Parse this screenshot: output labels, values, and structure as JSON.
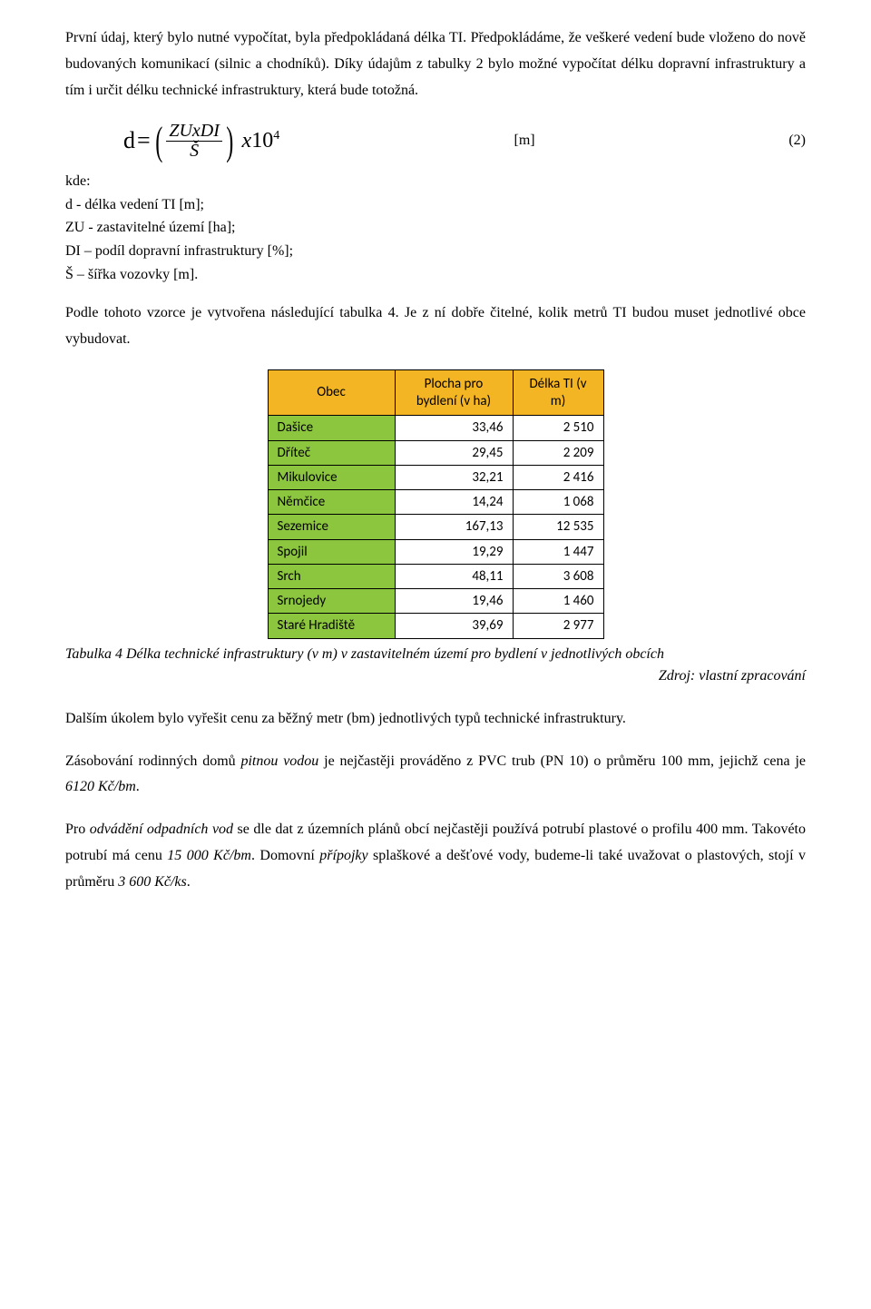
{
  "paragraphs": {
    "p1": "První údaj, který bylo nutné vypočítat, byla předpokládaná délka TI. Předpokládáme, že veškeré vedení bude vloženo do nově budovaných komunikací (silnic a chodníků). Díky údajům z tabulky 2 bylo možné vypočítat délku dopravní infrastruktury a tím i určit délku technické infrastruktury, která bude totožná.",
    "p2": "Podle tohoto vzorce je vytvořena následující tabulka 4. Je z ní dobře čitelné, kolik metrů TI budou muset jednotlivé obce vybudovat.",
    "p3_pre": "Dalším úkolem bylo vyřešit cenu za běžný metr (bm) jednotlivých typů technické infrastruktury.",
    "p4_a": "Zásobování rodinných domů ",
    "p4_i1": "pitnou vodou",
    "p4_b": " je nejčastěji prováděno z PVC trub (PN 10) o průměru 100 mm, jejichž cena je ",
    "p4_i2": "6120 Kč/bm",
    "p4_c": ".",
    "p5_a": "Pro ",
    "p5_i1": "odvádění odpadních vod",
    "p5_b": " se dle dat z územních plánů obcí nejčastěji používá potrubí plastové o profilu 400 mm. Takovéto potrubí má cenu ",
    "p5_i2": "15 000 Kč/bm",
    "p5_c": ". Domovní ",
    "p5_i3": "přípojky",
    "p5_d": " splaškové a dešťové vody, budeme-li také uvažovat o plastových, stojí v průměru ",
    "p5_i4": "3 600 Kč/ks",
    "p5_e": "."
  },
  "formula": {
    "lhs": "d",
    "eq": "=",
    "num": "ZUxDI",
    "den": "Š",
    "mul_x": "x",
    "base": "10",
    "exp": "4",
    "unit": "[m]",
    "eqnum": "(2)"
  },
  "defs": {
    "kde": "kde:",
    "l1": "d - délka vedení TI  [m];",
    "l2": "ZU - zastavitelné území  [ha];",
    "l3": "DI – podíl dopravní infrastruktury  [%];",
    "l4": "Š – šířka vozovky [m]."
  },
  "table": {
    "headers": {
      "obec": "Obec",
      "plocha": "Plocha pro bydlení (v ha)",
      "delka": "Délka TI (v m)"
    },
    "rows": [
      {
        "name": "Dašice",
        "area": "33,46",
        "length": "2 510"
      },
      {
        "name": "Dříteč",
        "area": "29,45",
        "length": "2 209"
      },
      {
        "name": "Mikulovice",
        "area": "32,21",
        "length": "2 416"
      },
      {
        "name": "Němčice",
        "area": "14,24",
        "length": "1 068"
      },
      {
        "name": "Sezemice",
        "area": "167,13",
        "length": "12 535"
      },
      {
        "name": "Spojil",
        "area": "19,29",
        "length": "1 447"
      },
      {
        "name": "Srch",
        "area": "48,11",
        "length": "3 608"
      },
      {
        "name": "Srnojedy",
        "area": "19,46",
        "length": "1 460"
      },
      {
        "name": "Staré Hradiště",
        "area": "39,69",
        "length": "2 977"
      }
    ],
    "caption": "Tabulka 4 Délka technické infrastruktury (v m) v zastavitelném území pro bydlení v jednotlivých obcích",
    "source": "Zdroj: vlastní zpracování",
    "colors": {
      "header_bg": "#f4b524",
      "name_bg": "#8cc63f",
      "border": "#000000",
      "cell_bg": "#ffffff"
    }
  }
}
